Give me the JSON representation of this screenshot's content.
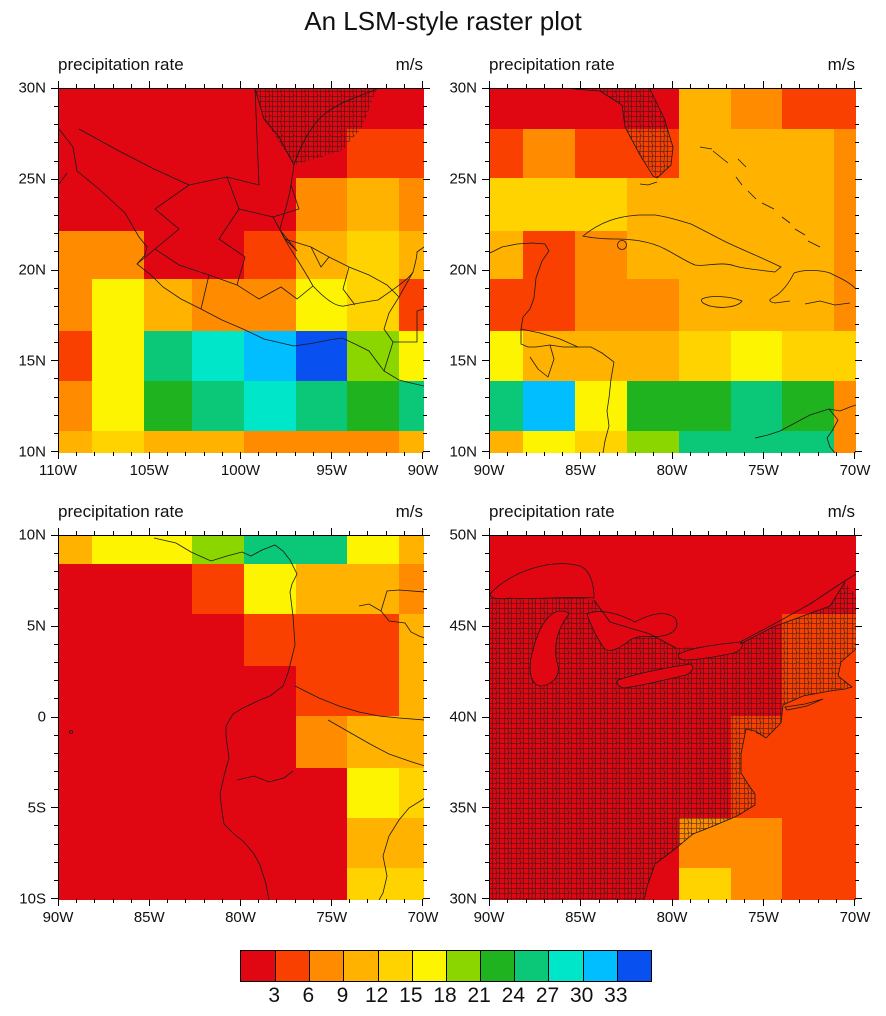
{
  "title": "An LSM-style raster plot",
  "panel_header_left": "precipitation rate",
  "panel_header_right": "m/s",
  "chart_data": {
    "type": "heatmap",
    "title": "An LSM-style raster plot",
    "variable": "precipitation rate",
    "units": "m/s",
    "legend": {
      "position": "bottom",
      "bin_edges": [
        3,
        6,
        9,
        12,
        15,
        18,
        21,
        24,
        27,
        30,
        33
      ],
      "tick_labels": [
        "3",
        "6",
        "9",
        "12",
        "15",
        "18",
        "21",
        "24",
        "27",
        "30",
        "33"
      ],
      "colors": [
        "#E00712",
        "#F94000",
        "#FF8C00",
        "#FFB300",
        "#FFD300",
        "#FCF400",
        "#8CD600",
        "#1FB41F",
        "#0BC878",
        "#00E6C8",
        "#00BEFF",
        "#0850F0"
      ]
    },
    "panels": [
      {
        "id": "mexico",
        "header_left": "precipitation rate",
        "header_right": "m/s",
        "lon_range": [
          "110W",
          "90W"
        ],
        "lat_range": [
          "10N",
          "30N"
        ],
        "x_tick_labels": [
          "110W",
          "105W",
          "100W",
          "95W",
          "90W"
        ],
        "y_tick_labels": [
          "30N",
          "25N",
          "20N",
          "15N",
          "10N"
        ],
        "bins": [
          [
            1,
            1,
            1,
            1,
            1,
            1,
            1,
            1
          ],
          [
            1,
            1,
            1,
            1,
            1,
            1,
            2,
            2
          ],
          [
            1,
            1,
            1,
            1,
            1,
            3,
            4,
            3
          ],
          [
            3,
            3,
            1,
            1,
            2,
            4,
            5,
            4
          ],
          [
            3,
            6,
            4,
            3,
            3,
            6,
            5,
            2
          ],
          [
            2,
            6,
            9,
            10,
            11,
            12,
            7,
            6
          ],
          [
            3,
            6,
            8,
            9,
            10,
            9,
            8,
            9
          ],
          [
            4,
            5,
            4,
            4,
            3,
            3,
            3,
            4
          ]
        ]
      },
      {
        "id": "caribbean",
        "header_left": "precipitation rate",
        "header_right": "m/s",
        "lon_range": [
          "90W",
          "70W"
        ],
        "lat_range": [
          "10N",
          "30N"
        ],
        "x_tick_labels": [
          "90W",
          "85W",
          "80W",
          "75W",
          "70W"
        ],
        "y_tick_labels": [
          "30N",
          "25N",
          "20N",
          "15N",
          "10N"
        ],
        "bins": [
          [
            1,
            1,
            1,
            1,
            4,
            3,
            2,
            2
          ],
          [
            2,
            3,
            2,
            2,
            4,
            4,
            4,
            3
          ],
          [
            5,
            5,
            5,
            4,
            4,
            4,
            4,
            3
          ],
          [
            4,
            2,
            3,
            4,
            4,
            4,
            4,
            3
          ],
          [
            2,
            2,
            3,
            3,
            4,
            4,
            4,
            3
          ],
          [
            6,
            4,
            4,
            4,
            5,
            6,
            5,
            5
          ],
          [
            9,
            11,
            6,
            8,
            8,
            9,
            8,
            3
          ],
          [
            4,
            6,
            5,
            7,
            9,
            9,
            9,
            3
          ]
        ]
      },
      {
        "id": "south-america",
        "header_left": "precipitation rate",
        "header_right": "m/s",
        "lon_range": [
          "90W",
          "70W"
        ],
        "lat_range": [
          "10S",
          "10N"
        ],
        "x_tick_labels": [
          "90W",
          "85W",
          "80W",
          "75W",
          "70W"
        ],
        "y_tick_labels": [
          "10N",
          "5N",
          "0",
          "5S",
          "10S"
        ],
        "bins": [
          [
            4,
            6,
            6,
            7,
            9,
            9,
            6,
            4
          ],
          [
            1,
            1,
            1,
            2,
            6,
            4,
            4,
            3
          ],
          [
            1,
            1,
            1,
            1,
            2,
            2,
            2,
            4
          ],
          [
            1,
            1,
            1,
            1,
            1,
            2,
            2,
            4
          ],
          [
            1,
            1,
            1,
            1,
            1,
            3,
            4,
            4
          ],
          [
            1,
            1,
            1,
            1,
            1,
            1,
            6,
            5
          ],
          [
            1,
            1,
            1,
            1,
            1,
            1,
            4,
            4
          ],
          [
            1,
            1,
            1,
            1,
            1,
            1,
            5,
            5
          ]
        ]
      },
      {
        "id": "eastern-us",
        "header_left": "precipitation rate",
        "header_right": "m/s",
        "lon_range": [
          "90W",
          "70W"
        ],
        "lat_range": [
          "30N",
          "50N"
        ],
        "x_tick_labels": [
          "90W",
          "85W",
          "80W",
          "75W",
          "70W"
        ],
        "y_tick_labels": [
          "50N",
          "45N",
          "40N",
          "35N",
          "30N"
        ],
        "bins": [
          [
            1,
            1,
            1,
            1,
            1,
            1,
            1,
            1
          ],
          [
            1,
            1,
            1,
            1,
            1,
            1,
            1,
            1
          ],
          [
            1,
            1,
            1,
            1,
            1,
            1,
            2,
            2
          ],
          [
            1,
            1,
            1,
            1,
            1,
            1,
            2,
            2
          ],
          [
            1,
            1,
            1,
            1,
            1,
            2,
            2,
            2
          ],
          [
            1,
            1,
            1,
            1,
            1,
            2,
            2,
            2
          ],
          [
            1,
            1,
            1,
            1,
            3,
            3,
            2,
            2
          ],
          [
            1,
            1,
            1,
            1,
            5,
            3,
            2,
            2
          ]
        ]
      }
    ]
  }
}
